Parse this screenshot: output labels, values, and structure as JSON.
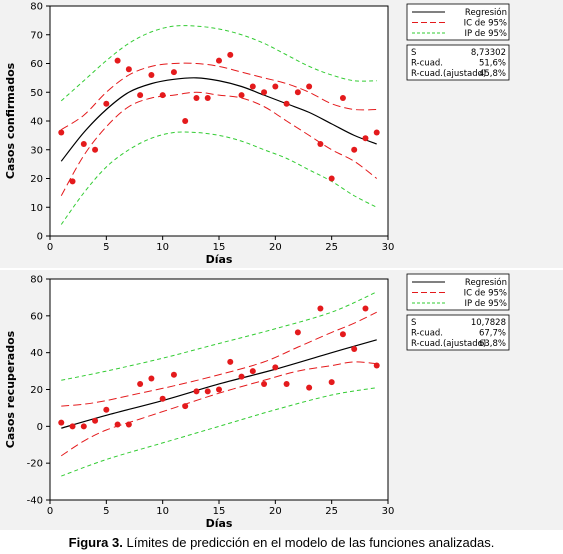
{
  "caption": {
    "label": "Figura 3.",
    "text": "Límites de predicción en el modelo de las funciones analizadas."
  },
  "colors": {
    "regression": "#000000",
    "ci": "#e41a1c",
    "pi": "#33cc33",
    "points": "#e41a1c",
    "panel_bg": "#f2f2f2"
  },
  "chart_data": [
    {
      "type": "scatter",
      "xlabel": "Días",
      "ylabel": "Casos confirmados",
      "xlim": [
        0,
        30
      ],
      "ylim": [
        0,
        80
      ],
      "xticks": [
        0,
        5,
        10,
        15,
        20,
        25,
        30
      ],
      "yticks": [
        0,
        10,
        20,
        30,
        40,
        50,
        60,
        70,
        80
      ],
      "grid": false,
      "legend_position": "top-right",
      "legend": [
        "Regresión",
        "IC de 95%",
        "IP de 95%"
      ],
      "stats": [
        {
          "label": "S",
          "value": "8,73302"
        },
        {
          "label": "R-cuad.",
          "value": "51,6%"
        },
        {
          "label": "R-cuad.(ajustado)",
          "value": "45,8%"
        }
      ],
      "points": [
        [
          1,
          36
        ],
        [
          2,
          19
        ],
        [
          3,
          32
        ],
        [
          4,
          30
        ],
        [
          5,
          46
        ],
        [
          6,
          61
        ],
        [
          7,
          58
        ],
        [
          8,
          49
        ],
        [
          9,
          56
        ],
        [
          10,
          49
        ],
        [
          11,
          57
        ],
        [
          12,
          40
        ],
        [
          13,
          48
        ],
        [
          14,
          48
        ],
        [
          15,
          61
        ],
        [
          16,
          63
        ],
        [
          17,
          49
        ],
        [
          18,
          52
        ],
        [
          19,
          50
        ],
        [
          20,
          52
        ],
        [
          21,
          46
        ],
        [
          22,
          50
        ],
        [
          23,
          52
        ],
        [
          24,
          32
        ],
        [
          25,
          20
        ],
        [
          26,
          48
        ],
        [
          27,
          30
        ],
        [
          28,
          34
        ],
        [
          29,
          36
        ]
      ],
      "regression": [
        [
          1,
          26
        ],
        [
          3,
          36
        ],
        [
          5,
          44
        ],
        [
          7,
          50
        ],
        [
          9,
          53
        ],
        [
          11,
          54.5
        ],
        [
          13,
          55
        ],
        [
          15,
          54
        ],
        [
          17,
          52
        ],
        [
          19,
          49
        ],
        [
          21,
          46
        ],
        [
          23,
          43
        ],
        [
          25,
          39
        ],
        [
          27,
          35
        ],
        [
          29,
          32
        ]
      ],
      "ci_upper": [
        [
          1,
          37
        ],
        [
          3,
          42
        ],
        [
          5,
          50
        ],
        [
          7,
          56
        ],
        [
          9,
          59
        ],
        [
          11,
          60
        ],
        [
          13,
          60
        ],
        [
          15,
          59
        ],
        [
          17,
          57
        ],
        [
          19,
          55
        ],
        [
          21,
          53
        ],
        [
          23,
          50
        ],
        [
          25,
          46
        ],
        [
          27,
          44
        ],
        [
          29,
          44
        ]
      ],
      "ci_lower": [
        [
          1,
          14
        ],
        [
          3,
          28
        ],
        [
          5,
          38
        ],
        [
          7,
          45
        ],
        [
          9,
          48
        ],
        [
          11,
          49
        ],
        [
          13,
          50
        ],
        [
          15,
          49
        ],
        [
          17,
          48
        ],
        [
          19,
          45
        ],
        [
          21,
          40
        ],
        [
          23,
          35
        ],
        [
          25,
          30
        ],
        [
          27,
          26
        ],
        [
          29,
          20
        ]
      ],
      "pi_upper": [
        [
          1,
          47
        ],
        [
          3,
          54
        ],
        [
          5,
          61
        ],
        [
          7,
          67
        ],
        [
          9,
          71
        ],
        [
          11,
          73
        ],
        [
          13,
          73
        ],
        [
          15,
          72
        ],
        [
          17,
          70
        ],
        [
          19,
          67
        ],
        [
          21,
          63
        ],
        [
          23,
          59
        ],
        [
          25,
          56
        ],
        [
          27,
          54
        ],
        [
          29,
          54
        ]
      ],
      "pi_lower": [
        [
          1,
          4
        ],
        [
          3,
          15
        ],
        [
          5,
          24
        ],
        [
          7,
          30
        ],
        [
          9,
          34
        ],
        [
          11,
          36
        ],
        [
          13,
          36
        ],
        [
          15,
          35
        ],
        [
          17,
          33
        ],
        [
          19,
          30
        ],
        [
          21,
          27
        ],
        [
          23,
          23
        ],
        [
          25,
          19
        ],
        [
          27,
          14
        ],
        [
          29,
          10
        ]
      ]
    },
    {
      "type": "scatter",
      "xlabel": "Días",
      "ylabel": "Casos recuperados",
      "xlim": [
        0,
        30
      ],
      "ylim": [
        -40,
        80
      ],
      "xticks": [
        0,
        5,
        10,
        15,
        20,
        25,
        30
      ],
      "yticks": [
        -40,
        -20,
        0,
        20,
        40,
        60,
        80
      ],
      "grid": false,
      "legend_position": "top-right",
      "legend": [
        "Regresión",
        "IC de 95%",
        "IP de 95%"
      ],
      "stats": [
        {
          "label": "S",
          "value": "10,7828"
        },
        {
          "label": "R-cuad.",
          "value": "67,7%"
        },
        {
          "label": "R-cuad.(ajustado)",
          "value": "63,8%"
        }
      ],
      "points": [
        [
          1,
          2
        ],
        [
          2,
          0
        ],
        [
          3,
          0
        ],
        [
          4,
          3
        ],
        [
          5,
          9
        ],
        [
          6,
          1
        ],
        [
          7,
          1
        ],
        [
          8,
          23
        ],
        [
          9,
          26
        ],
        [
          10,
          15
        ],
        [
          11,
          28
        ],
        [
          12,
          11
        ],
        [
          13,
          19
        ],
        [
          14,
          19
        ],
        [
          15,
          20
        ],
        [
          16,
          35
        ],
        [
          17,
          27
        ],
        [
          18,
          30
        ],
        [
          19,
          23
        ],
        [
          20,
          32
        ],
        [
          21,
          23
        ],
        [
          22,
          51
        ],
        [
          23,
          21
        ],
        [
          24,
          64
        ],
        [
          25,
          24
        ],
        [
          26,
          50
        ],
        [
          27,
          42
        ],
        [
          28,
          64
        ],
        [
          29,
          33
        ]
      ],
      "regression": [
        [
          1,
          -1
        ],
        [
          5,
          6
        ],
        [
          10,
          14
        ],
        [
          15,
          23
        ],
        [
          20,
          31
        ],
        [
          25,
          40
        ],
        [
          29,
          47
        ]
      ],
      "ci_upper": [
        [
          1,
          11
        ],
        [
          3,
          12
        ],
        [
          5,
          14
        ],
        [
          8,
          18
        ],
        [
          11,
          22
        ],
        [
          15,
          28
        ],
        [
          19,
          35
        ],
        [
          22,
          43
        ],
        [
          25,
          51
        ],
        [
          27,
          56
        ],
        [
          29,
          62
        ]
      ],
      "ci_lower": [
        [
          1,
          -16
        ],
        [
          3,
          -8
        ],
        [
          5,
          -2
        ],
        [
          8,
          4
        ],
        [
          11,
          10
        ],
        [
          15,
          18
        ],
        [
          19,
          25
        ],
        [
          22,
          30
        ],
        [
          25,
          33
        ],
        [
          27,
          35
        ],
        [
          29,
          34
        ]
      ],
      "pi_upper": [
        [
          1,
          25
        ],
        [
          5,
          30
        ],
        [
          10,
          37
        ],
        [
          15,
          45
        ],
        [
          20,
          53
        ],
        [
          25,
          62
        ],
        [
          29,
          73
        ]
      ],
      "pi_lower": [
        [
          1,
          -27
        ],
        [
          5,
          -18
        ],
        [
          10,
          -9
        ],
        [
          15,
          0
        ],
        [
          20,
          9
        ],
        [
          25,
          17
        ],
        [
          29,
          21
        ]
      ]
    }
  ]
}
